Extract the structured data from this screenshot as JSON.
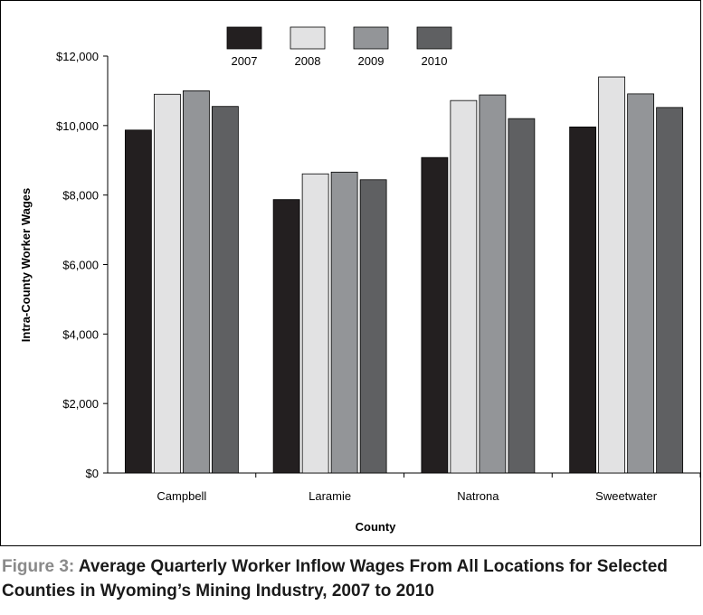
{
  "caption": {
    "figure_number": "Figure 3:",
    "title": "Average Quarterly Worker Inflow Wages From All Locations for Selected Counties in Wyoming’s Mining Industry, 2007 to 2010"
  },
  "colors": {
    "2007": "#231f20",
    "2008": "#e2e2e3",
    "2009": "#939598",
    "2010": "#5f6062"
  },
  "chart_data": {
    "type": "bar",
    "title": "",
    "xlabel": "County",
    "ylabel": "Intra-County Worker Wages",
    "categories": [
      "Campbell",
      "Laramie",
      "Natrona",
      "Sweetwater"
    ],
    "series": [
      {
        "name": "2007",
        "values": [
          9870,
          7870,
          9080,
          9960
        ]
      },
      {
        "name": "2008",
        "values": [
          10900,
          8610,
          10720,
          11400
        ]
      },
      {
        "name": "2009",
        "values": [
          11000,
          8660,
          10880,
          10910
        ]
      },
      {
        "name": "2010",
        "values": [
          10550,
          8440,
          10200,
          10520
        ]
      }
    ],
    "ylim": [
      0,
      12000
    ],
    "yticks": [
      0,
      2000,
      4000,
      6000,
      8000,
      10000,
      12000
    ],
    "ytick_labels": [
      "$0",
      "$2,000",
      "$4,000",
      "$6,000",
      "$8,000",
      "$10,000",
      "$12,000"
    ],
    "grid": false,
    "legend_position": "top"
  }
}
